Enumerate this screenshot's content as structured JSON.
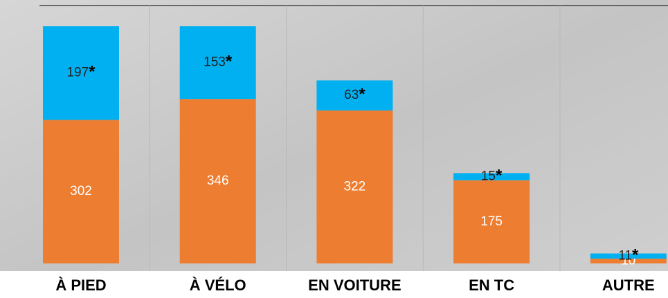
{
  "chart_data": {
    "type": "stacked-bar",
    "categories": [
      "À PIED",
      "À VÉLO",
      "EN VOITURE",
      "EN TC",
      "AUTRE"
    ],
    "series": [
      {
        "color": "#ed7d31",
        "values": [
          302,
          346,
          322,
          175,
          10
        ]
      },
      {
        "color": "#00b0f0",
        "values": [
          197,
          153,
          63,
          15,
          11
        ],
        "marker": "*"
      }
    ]
  }
}
